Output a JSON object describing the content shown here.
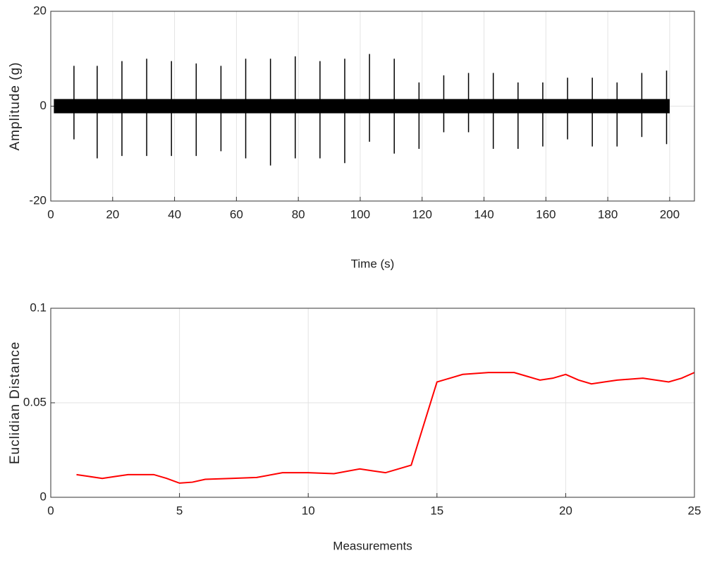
{
  "chart_data": [
    {
      "type": "spike",
      "ylabel": "Amplitude (g)",
      "xlabel": "Time (s)",
      "x": [
        7.5,
        15,
        23,
        31,
        39,
        47,
        55,
        63,
        71,
        79,
        87,
        95,
        103,
        111,
        119,
        127,
        135,
        143,
        151,
        159,
        167,
        175,
        183,
        191,
        199
      ],
      "series": [
        {
          "color": "#000000",
          "values": [
            8.5,
            8.5,
            9.5,
            10,
            9.5,
            9,
            8.5,
            10,
            10,
            10.5,
            9.5,
            10,
            11,
            10,
            5,
            6.5,
            7,
            7,
            5,
            5,
            6,
            6,
            5,
            7,
            7.5
          ]
        },
        {
          "color": "#000000",
          "values": [
            -7,
            -11,
            -10.5,
            -10.5,
            -10.5,
            -10.5,
            -9.5,
            -11,
            -12.5,
            -11,
            -11,
            -12,
            -7.5,
            -10,
            -9,
            -5.5,
            -5.5,
            -9,
            -9,
            -8.5,
            -7,
            -8.5,
            -8.5,
            -6.5,
            -8
          ]
        }
      ],
      "band": [
        -1.5,
        1.5
      ],
      "band_x": [
        1,
        200
      ],
      "xlim": [
        0,
        208
      ],
      "xticks": [
        0,
        20,
        40,
        60,
        80,
        100,
        120,
        140,
        160,
        180,
        200
      ],
      "ylim": [
        -20,
        20
      ],
      "yticks": [
        -20,
        0,
        20
      ],
      "grid": true
    },
    {
      "type": "line",
      "ylabel": "Euclidian Distance",
      "xlabel": "Measurements",
      "x": [
        1,
        1.5,
        2,
        2.5,
        3,
        4,
        4.5,
        5,
        5.5,
        6,
        7,
        8,
        9,
        10,
        11,
        12,
        12.5,
        13,
        13.5,
        14,
        15,
        15.5,
        16,
        17,
        18,
        18.5,
        19,
        19.5,
        20,
        20.5,
        21,
        21.5,
        22,
        23,
        24,
        24.5,
        25
      ],
      "series": [
        {
          "color": "#ff0000",
          "values": [
            0.012,
            0.011,
            0.01,
            0.011,
            0.012,
            0.012,
            0.01,
            0.0075,
            0.008,
            0.0095,
            0.01,
            0.0105,
            0.013,
            0.013,
            0.0125,
            0.015,
            0.014,
            0.013,
            0.015,
            0.017,
            0.061,
            0.063,
            0.065,
            0.066,
            0.066,
            0.064,
            0.062,
            0.063,
            0.065,
            0.062,
            0.06,
            0.061,
            0.062,
            0.063,
            0.061,
            0.063,
            0.066
          ]
        }
      ],
      "xlim": [
        0,
        25
      ],
      "xticks": [
        0,
        5,
        10,
        15,
        20,
        25
      ],
      "ylim": [
        0,
        0.1
      ],
      "yticks": [
        0,
        0.05,
        0.1
      ],
      "grid": true
    }
  ]
}
